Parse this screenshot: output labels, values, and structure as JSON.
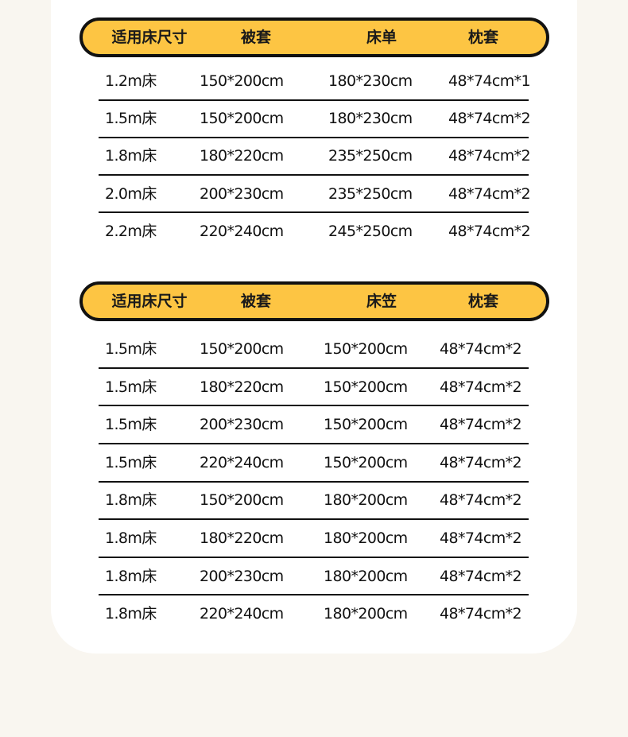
{
  "table1": {
    "headers": [
      "适用床尺寸",
      "被套",
      "床单",
      "枕套"
    ],
    "rows": [
      [
        "1.2m床",
        "150*200cm",
        "180*230cm",
        "48*74cm*1"
      ],
      [
        "1.5m床",
        "150*200cm",
        "180*230cm",
        "48*74cm*2"
      ],
      [
        "1.8m床",
        "180*220cm",
        "235*250cm",
        "48*74cm*2"
      ],
      [
        "2.0m床",
        "200*230cm",
        "235*250cm",
        "48*74cm*2"
      ],
      [
        "2.2m床",
        "220*240cm",
        "245*250cm",
        "48*74cm*2"
      ]
    ]
  },
  "table2": {
    "headers": [
      "适用床尺寸",
      "被套",
      "床笠",
      "枕套"
    ],
    "rows": [
      [
        "1.5m床",
        "150*200cm",
        "150*200cm",
        "48*74cm*2"
      ],
      [
        "1.5m床",
        "180*220cm",
        "150*200cm",
        "48*74cm*2"
      ],
      [
        "1.5m床",
        "200*230cm",
        "150*200cm",
        "48*74cm*2"
      ],
      [
        "1.5m床",
        "220*240cm",
        "150*200cm",
        "48*74cm*2"
      ],
      [
        "1.8m床",
        "150*200cm",
        "180*200cm",
        "48*74cm*2"
      ],
      [
        "1.8m床",
        "180*220cm",
        "180*200cm",
        "48*74cm*2"
      ],
      [
        "1.8m床",
        "200*230cm",
        "180*200cm",
        "48*74cm*2"
      ],
      [
        "1.8m床",
        "220*240cm",
        "180*200cm",
        "48*74cm*2"
      ]
    ]
  },
  "colors": {
    "header_fill": "#fdc543",
    "background": "#f9f6f0",
    "card": "#ffffff"
  }
}
